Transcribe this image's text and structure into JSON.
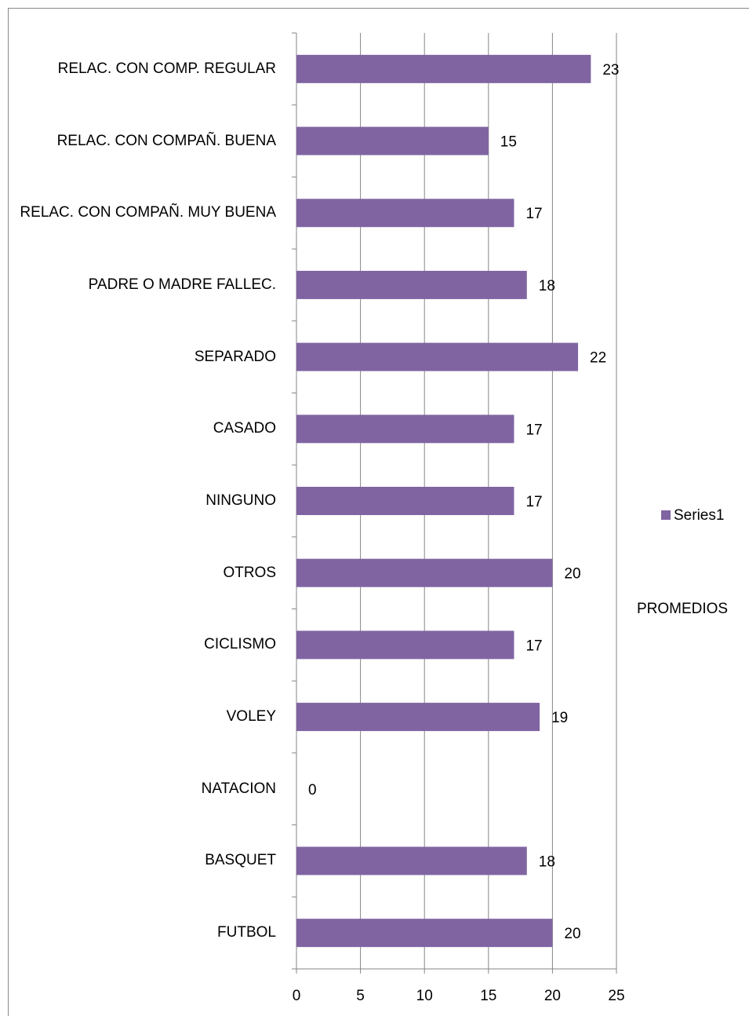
{
  "chart_data": {
    "type": "bar",
    "orientation": "horizontal",
    "categories": [
      "RELAC. CON COMP. REGULAR",
      "RELAC. CON COMPAÑ. BUENA",
      "RELAC. CON COMPAÑ. MUY BUENA",
      "PADRE O MADRE FALLEC.",
      "SEPARADO",
      "CASADO",
      "NINGUNO",
      "OTROS",
      "CICLISMO",
      "VOLEY",
      "NATACION",
      "BASQUET",
      "FUTBOL"
    ],
    "series": [
      {
        "name": "Series1",
        "color": "#8064a2",
        "values": [
          23,
          15,
          17,
          18,
          22,
          17,
          17,
          20,
          17,
          19,
          0,
          18,
          20
        ]
      }
    ],
    "xlim": [
      0,
      25
    ],
    "xticks": [
      0,
      5,
      10,
      15,
      20,
      25
    ],
    "grid": true,
    "y_label": "PROMEDIOS",
    "legend": "right"
  }
}
